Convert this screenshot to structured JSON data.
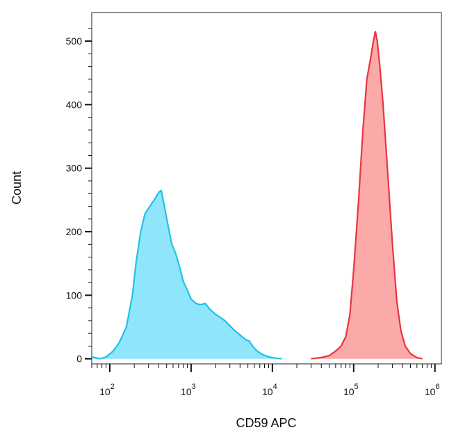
{
  "chart_data": {
    "type": "area",
    "title": "",
    "xlabel": "CD59 APC",
    "ylabel": "Count",
    "x_scale": "log",
    "xlim": [
      60,
      1200000
    ],
    "ylim": [
      -8,
      545
    ],
    "x_major_ticks": [
      {
        "value": 100,
        "base": "10",
        "exp": "2"
      },
      {
        "value": 1000,
        "base": "10",
        "exp": "3"
      },
      {
        "value": 10000,
        "base": "10",
        "exp": "4"
      },
      {
        "value": 100000,
        "base": "10",
        "exp": "5"
      },
      {
        "value": 1000000,
        "base": "10",
        "exp": "6"
      }
    ],
    "y_ticks": [
      {
        "value": 0,
        "label": "0"
      },
      {
        "value": 100,
        "label": "100"
      },
      {
        "value": 200,
        "label": "200"
      },
      {
        "value": 300,
        "label": "300"
      },
      {
        "value": 400,
        "label": "400"
      },
      {
        "value": 500,
        "label": "500"
      }
    ],
    "grid": false,
    "legend": "none",
    "series": [
      {
        "color_stroke": "#1fc0ea",
        "color_fill": "#8fe6fa",
        "x": [
          60,
          75,
          90,
          110,
          130,
          160,
          190,
          210,
          240,
          270,
          300,
          330,
          360,
          400,
          430,
          470,
          520,
          580,
          650,
          720,
          800,
          900,
          1000,
          1150,
          1300,
          1500,
          1700,
          2000,
          2300,
          2600,
          3000,
          3400,
          3800,
          4200,
          4700,
          5200,
          5700,
          6500,
          7500,
          9000,
          11000,
          13000
        ],
        "y": [
          3,
          0,
          3,
          12,
          25,
          50,
          100,
          150,
          200,
          228,
          237,
          245,
          252,
          262,
          265,
          240,
          210,
          180,
          165,
          145,
          122,
          108,
          94,
          87,
          85,
          87,
          78,
          70,
          65,
          60,
          52,
          45,
          40,
          35,
          30,
          28,
          20,
          12,
          7,
          3,
          1,
          0
        ]
      },
      {
        "color_stroke": "#e8353f",
        "color_fill": "#fba9a9",
        "x": [
          30000,
          40000,
          50000,
          60000,
          70000,
          80000,
          90000,
          100000,
          115000,
          130000,
          145000,
          160000,
          175000,
          185000,
          195000,
          210000,
          230000,
          260000,
          300000,
          340000,
          380000,
          430000,
          500000,
          600000,
          700000
        ],
        "y": [
          0,
          2,
          5,
          12,
          20,
          35,
          70,
          140,
          250,
          360,
          440,
          470,
          500,
          515,
          500,
          460,
          400,
          300,
          180,
          90,
          45,
          20,
          8,
          2,
          0
        ]
      }
    ]
  }
}
